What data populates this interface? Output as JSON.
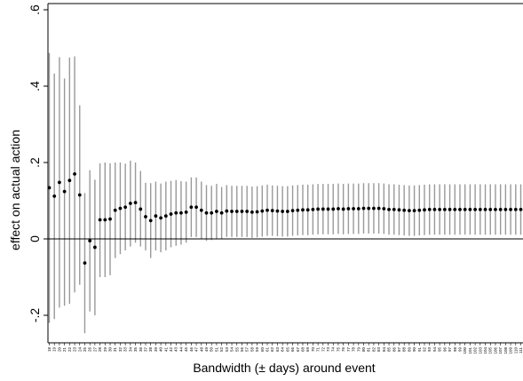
{
  "chart_data": {
    "type": "scatter",
    "subtype": "coefficient plot with confidence intervals",
    "xlabel": "Bandwidth (± days) around event",
    "ylabel": "effect on actual action",
    "ylim": [
      -0.25,
      0.62
    ],
    "yticks": [
      -0.2,
      0,
      0.2,
      0.4,
      0.6
    ],
    "ytick_labels": [
      "-.2",
      "0",
      ".2",
      ".4",
      ".6"
    ],
    "reference_line": 0,
    "x_range": [
      18,
      111
    ],
    "grid": false,
    "colors": {
      "point": "#000000",
      "ci": "#999999",
      "axis": "#000000"
    },
    "points": [
      {
        "x": 18,
        "y": 0.134,
        "lo": -0.22,
        "hi": 0.487
      },
      {
        "x": 19,
        "y": 0.112,
        "lo": -0.21,
        "hi": 0.433
      },
      {
        "x": 20,
        "y": 0.148,
        "lo": -0.18,
        "hi": 0.476
      },
      {
        "x": 21,
        "y": 0.124,
        "lo": -0.175,
        "hi": 0.42
      },
      {
        "x": 22,
        "y": 0.153,
        "lo": -0.17,
        "hi": 0.475
      },
      {
        "x": 23,
        "y": 0.17,
        "lo": -0.14,
        "hi": 0.478
      },
      {
        "x": 24,
        "y": 0.115,
        "lo": -0.12,
        "hi": 0.35
      },
      {
        "x": 25,
        "y": -0.063,
        "lo": -0.247,
        "hi": 0.12
      },
      {
        "x": 26,
        "y": -0.005,
        "lo": -0.19,
        "hi": 0.18
      },
      {
        "x": 27,
        "y": -0.022,
        "lo": -0.2,
        "hi": 0.155
      },
      {
        "x": 28,
        "y": 0.05,
        "lo": -0.1,
        "hi": 0.198
      },
      {
        "x": 29,
        "y": 0.05,
        "lo": -0.1,
        "hi": 0.2
      },
      {
        "x": 30,
        "y": 0.052,
        "lo": -0.095,
        "hi": 0.198
      },
      {
        "x": 31,
        "y": 0.075,
        "lo": -0.05,
        "hi": 0.2
      },
      {
        "x": 32,
        "y": 0.08,
        "lo": -0.04,
        "hi": 0.2
      },
      {
        "x": 33,
        "y": 0.083,
        "lo": -0.03,
        "hi": 0.197
      },
      {
        "x": 34,
        "y": 0.093,
        "lo": -0.02,
        "hi": 0.205
      },
      {
        "x": 35,
        "y": 0.095,
        "lo": -0.01,
        "hi": 0.2
      },
      {
        "x": 36,
        "y": 0.078,
        "lo": -0.02,
        "hi": 0.178
      },
      {
        "x": 37,
        "y": 0.058,
        "lo": -0.03,
        "hi": 0.147
      },
      {
        "x": 38,
        "y": 0.048,
        "lo": -0.05,
        "hi": 0.146
      },
      {
        "x": 39,
        "y": 0.06,
        "lo": -0.03,
        "hi": 0.15
      },
      {
        "x": 40,
        "y": 0.055,
        "lo": -0.035,
        "hi": 0.145
      },
      {
        "x": 41,
        "y": 0.06,
        "lo": -0.03,
        "hi": 0.15
      },
      {
        "x": 42,
        "y": 0.065,
        "lo": -0.022,
        "hi": 0.152
      },
      {
        "x": 43,
        "y": 0.068,
        "lo": -0.018,
        "hi": 0.154
      },
      {
        "x": 44,
        "y": 0.068,
        "lo": -0.015,
        "hi": 0.151
      },
      {
        "x": 45,
        "y": 0.07,
        "lo": -0.01,
        "hi": 0.15
      },
      {
        "x": 46,
        "y": 0.083,
        "lo": 0.005,
        "hi": 0.161
      },
      {
        "x": 47,
        "y": 0.083,
        "lo": 0.005,
        "hi": 0.161
      },
      {
        "x": 48,
        "y": 0.075,
        "lo": 0.0,
        "hi": 0.15
      },
      {
        "x": 49,
        "y": 0.068,
        "lo": -0.005,
        "hi": 0.141
      },
      {
        "x": 50,
        "y": 0.068,
        "lo": -0.003,
        "hi": 0.139
      },
      {
        "x": 51,
        "y": 0.072,
        "lo": 0.0,
        "hi": 0.144
      },
      {
        "x": 52,
        "y": 0.068,
        "lo": 0.0,
        "hi": 0.136
      },
      {
        "x": 53,
        "y": 0.073,
        "lo": 0.005,
        "hi": 0.141
      },
      {
        "x": 54,
        "y": 0.072,
        "lo": 0.005,
        "hi": 0.139
      },
      {
        "x": 55,
        "y": 0.072,
        "lo": 0.005,
        "hi": 0.139
      },
      {
        "x": 56,
        "y": 0.072,
        "lo": 0.005,
        "hi": 0.139
      },
      {
        "x": 57,
        "y": 0.072,
        "lo": 0.005,
        "hi": 0.139
      },
      {
        "x": 58,
        "y": 0.07,
        "lo": 0.003,
        "hi": 0.137
      },
      {
        "x": 59,
        "y": 0.071,
        "lo": 0.004,
        "hi": 0.138
      },
      {
        "x": 60,
        "y": 0.073,
        "lo": 0.006,
        "hi": 0.14
      },
      {
        "x": 61,
        "y": 0.075,
        "lo": 0.008,
        "hi": 0.142
      },
      {
        "x": 62,
        "y": 0.074,
        "lo": 0.008,
        "hi": 0.14
      },
      {
        "x": 63,
        "y": 0.073,
        "lo": 0.007,
        "hi": 0.139
      },
      {
        "x": 64,
        "y": 0.072,
        "lo": 0.006,
        "hi": 0.138
      },
      {
        "x": 65,
        "y": 0.072,
        "lo": 0.006,
        "hi": 0.138
      },
      {
        "x": 66,
        "y": 0.074,
        "lo": 0.008,
        "hi": 0.14
      },
      {
        "x": 67,
        "y": 0.075,
        "lo": 0.009,
        "hi": 0.141
      },
      {
        "x": 68,
        "y": 0.076,
        "lo": 0.01,
        "hi": 0.142
      },
      {
        "x": 69,
        "y": 0.076,
        "lo": 0.01,
        "hi": 0.142
      },
      {
        "x": 70,
        "y": 0.077,
        "lo": 0.011,
        "hi": 0.143
      },
      {
        "x": 71,
        "y": 0.078,
        "lo": 0.012,
        "hi": 0.144
      },
      {
        "x": 72,
        "y": 0.078,
        "lo": 0.012,
        "hi": 0.144
      },
      {
        "x": 73,
        "y": 0.078,
        "lo": 0.012,
        "hi": 0.144
      },
      {
        "x": 74,
        "y": 0.078,
        "lo": 0.012,
        "hi": 0.144
      },
      {
        "x": 75,
        "y": 0.079,
        "lo": 0.013,
        "hi": 0.145
      },
      {
        "x": 76,
        "y": 0.078,
        "lo": 0.012,
        "hi": 0.144
      },
      {
        "x": 77,
        "y": 0.079,
        "lo": 0.013,
        "hi": 0.145
      },
      {
        "x": 78,
        "y": 0.079,
        "lo": 0.013,
        "hi": 0.145
      },
      {
        "x": 79,
        "y": 0.079,
        "lo": 0.013,
        "hi": 0.145
      },
      {
        "x": 80,
        "y": 0.08,
        "lo": 0.014,
        "hi": 0.146
      },
      {
        "x": 81,
        "y": 0.08,
        "lo": 0.014,
        "hi": 0.146
      },
      {
        "x": 82,
        "y": 0.08,
        "lo": 0.014,
        "hi": 0.146
      },
      {
        "x": 83,
        "y": 0.08,
        "lo": 0.014,
        "hi": 0.146
      },
      {
        "x": 84,
        "y": 0.079,
        "lo": 0.013,
        "hi": 0.145
      },
      {
        "x": 85,
        "y": 0.077,
        "lo": 0.011,
        "hi": 0.143
      },
      {
        "x": 86,
        "y": 0.077,
        "lo": 0.011,
        "hi": 0.143
      },
      {
        "x": 87,
        "y": 0.076,
        "lo": 0.01,
        "hi": 0.142
      },
      {
        "x": 88,
        "y": 0.075,
        "lo": 0.009,
        "hi": 0.141
      },
      {
        "x": 89,
        "y": 0.074,
        "lo": 0.008,
        "hi": 0.14
      },
      {
        "x": 90,
        "y": 0.074,
        "lo": 0.008,
        "hi": 0.14
      },
      {
        "x": 91,
        "y": 0.075,
        "lo": 0.009,
        "hi": 0.141
      },
      {
        "x": 92,
        "y": 0.076,
        "lo": 0.01,
        "hi": 0.142
      },
      {
        "x": 93,
        "y": 0.077,
        "lo": 0.011,
        "hi": 0.143
      },
      {
        "x": 94,
        "y": 0.077,
        "lo": 0.011,
        "hi": 0.143
      },
      {
        "x": 95,
        "y": 0.077,
        "lo": 0.011,
        "hi": 0.143
      },
      {
        "x": 96,
        "y": 0.077,
        "lo": 0.011,
        "hi": 0.143
      },
      {
        "x": 97,
        "y": 0.077,
        "lo": 0.011,
        "hi": 0.143
      },
      {
        "x": 98,
        "y": 0.077,
        "lo": 0.011,
        "hi": 0.143
      },
      {
        "x": 99,
        "y": 0.077,
        "lo": 0.011,
        "hi": 0.143
      },
      {
        "x": 100,
        "y": 0.077,
        "lo": 0.011,
        "hi": 0.143
      },
      {
        "x": 101,
        "y": 0.077,
        "lo": 0.011,
        "hi": 0.143
      },
      {
        "x": 102,
        "y": 0.077,
        "lo": 0.011,
        "hi": 0.143
      },
      {
        "x": 103,
        "y": 0.077,
        "lo": 0.011,
        "hi": 0.143
      },
      {
        "x": 104,
        "y": 0.077,
        "lo": 0.011,
        "hi": 0.143
      },
      {
        "x": 105,
        "y": 0.077,
        "lo": 0.011,
        "hi": 0.143
      },
      {
        "x": 106,
        "y": 0.077,
        "lo": 0.011,
        "hi": 0.143
      },
      {
        "x": 107,
        "y": 0.077,
        "lo": 0.011,
        "hi": 0.143
      },
      {
        "x": 108,
        "y": 0.077,
        "lo": 0.011,
        "hi": 0.143
      },
      {
        "x": 109,
        "y": 0.077,
        "lo": 0.011,
        "hi": 0.143
      },
      {
        "x": 110,
        "y": 0.077,
        "lo": 0.011,
        "hi": 0.143
      },
      {
        "x": 111,
        "y": 0.077,
        "lo": 0.011,
        "hi": 0.143
      }
    ]
  }
}
